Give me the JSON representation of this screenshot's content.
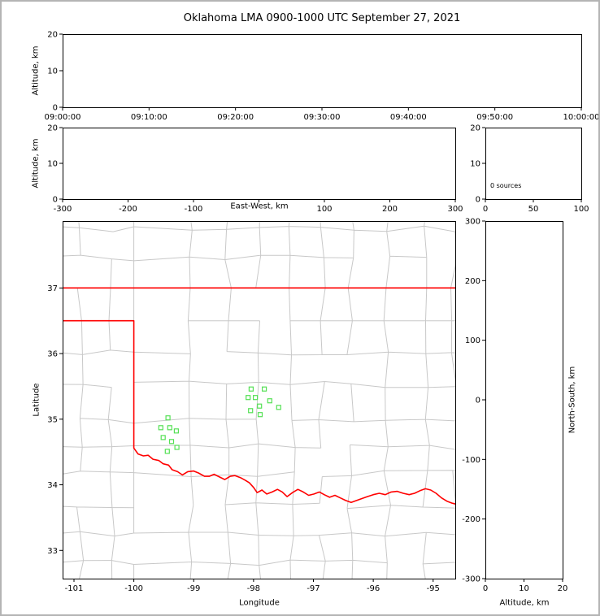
{
  "title": "Oklahoma LMA 0900-1000 UTC September 27, 2021",
  "colors": {
    "frame": "#b4b4b4",
    "axis": "#000000",
    "county_line": "#c8c8c8",
    "state_border": "#ff0000",
    "station_marker": "#55e055",
    "background": "#ffffff"
  },
  "chart_data": [
    {
      "id": "altitude-vs-time",
      "type": "scatter",
      "xlabel": "",
      "ylabel": "Altitude, km",
      "xlim": [
        0,
        3600
      ],
      "ylim": [
        0,
        20
      ],
      "xtick_vals": [
        0,
        600,
        1200,
        1800,
        2400,
        3000,
        3600
      ],
      "xtick_labels": [
        "09:00:00",
        "09:10:00",
        "09:20:00",
        "09:30:00",
        "09:40:00",
        "09:50:00",
        "10:00:00"
      ],
      "ytick_vals": [
        0,
        10,
        20
      ],
      "ytick_labels": [
        "0",
        "10",
        "20"
      ],
      "points": []
    },
    {
      "id": "altitude-vs-east-west",
      "type": "scatter",
      "xlabel": "East-West, km",
      "ylabel": "Altitude, km",
      "xlim": [
        -300,
        300
      ],
      "ylim": [
        0,
        20
      ],
      "xtick_vals": [
        -300,
        -200,
        -100,
        0,
        100,
        200,
        300
      ],
      "xtick_labels": [
        "-300",
        "-200",
        "-100",
        "",
        "100",
        "200",
        "300"
      ],
      "ytick_vals": [
        0,
        10,
        20
      ],
      "ytick_labels": [
        "0",
        "10",
        "20"
      ],
      "points": []
    },
    {
      "id": "altitude-source-histogram",
      "type": "line",
      "xlabel": "",
      "ylabel": "",
      "annotation": "0 sources",
      "xlim": [
        0,
        100
      ],
      "ylim": [
        0,
        20
      ],
      "xtick_vals": [
        0,
        50,
        100
      ],
      "xtick_labels": [
        "0",
        "50",
        "100"
      ],
      "ytick_vals": [
        0,
        10,
        20
      ],
      "ytick_labels": [
        "0",
        "10",
        "20"
      ],
      "points": []
    },
    {
      "id": "map-latitude-vs-longitude",
      "type": "scatter",
      "xlabel": "Longitude",
      "ylabel": "Latitude",
      "xlim": [
        -101.19,
        -94.63
      ],
      "ylim": [
        32.57,
        38.02
      ],
      "xtick_vals": [
        -101,
        -100,
        -99,
        -98,
        -97,
        -96,
        -95
      ],
      "xtick_labels": [
        "-101",
        "-100",
        "-99",
        "-98",
        "-97",
        "-96",
        "-95"
      ],
      "ytick_vals": [
        33,
        34,
        35,
        36,
        37
      ],
      "ytick_labels": [
        "33",
        "34",
        "35",
        "36",
        "37"
      ],
      "stations": [
        [
          -99.55,
          34.87
        ],
        [
          -99.43,
          35.02
        ],
        [
          -99.4,
          34.87
        ],
        [
          -99.29,
          34.82
        ],
        [
          -99.51,
          34.72
        ],
        [
          -99.37,
          34.66
        ],
        [
          -99.28,
          34.57
        ],
        [
          -99.44,
          34.51
        ],
        [
          -98.04,
          35.46
        ],
        [
          -97.82,
          35.46
        ],
        [
          -98.09,
          35.33
        ],
        [
          -97.97,
          35.33
        ],
        [
          -97.73,
          35.28
        ],
        [
          -97.9,
          35.2
        ],
        [
          -98.05,
          35.13
        ],
        [
          -97.89,
          35.07
        ],
        [
          -97.58,
          35.18
        ]
      ],
      "state_border": [
        [
          [
            -101.3,
            37.0
          ],
          [
            -94.5,
            37.0
          ]
        ],
        [
          [
            -101.3,
            36.5
          ],
          [
            -100.0,
            36.5
          ],
          [
            -100.0,
            34.56
          ],
          [
            -99.93,
            34.47
          ],
          [
            -99.84,
            34.44
          ],
          [
            -99.76,
            34.45
          ],
          [
            -99.68,
            34.39
          ],
          [
            -99.58,
            34.37
          ],
          [
            -99.51,
            34.32
          ],
          [
            -99.42,
            34.3
          ],
          [
            -99.36,
            34.23
          ],
          [
            -99.27,
            34.2
          ],
          [
            -99.19,
            34.15
          ],
          [
            -99.1,
            34.2
          ],
          [
            -99.0,
            34.21
          ],
          [
            -98.92,
            34.18
          ],
          [
            -98.82,
            34.13
          ],
          [
            -98.74,
            34.13
          ],
          [
            -98.66,
            34.16
          ],
          [
            -98.57,
            34.12
          ],
          [
            -98.48,
            34.08
          ],
          [
            -98.39,
            34.13
          ],
          [
            -98.31,
            34.14
          ],
          [
            -98.22,
            34.11
          ],
          [
            -98.14,
            34.07
          ],
          [
            -98.07,
            34.03
          ],
          [
            -98.0,
            33.96
          ],
          [
            -97.94,
            33.88
          ],
          [
            -97.86,
            33.92
          ],
          [
            -97.78,
            33.86
          ],
          [
            -97.69,
            33.89
          ],
          [
            -97.6,
            33.93
          ],
          [
            -97.52,
            33.89
          ],
          [
            -97.44,
            33.82
          ],
          [
            -97.35,
            33.88
          ],
          [
            -97.26,
            33.93
          ],
          [
            -97.17,
            33.89
          ],
          [
            -97.08,
            33.84
          ],
          [
            -96.99,
            33.86
          ],
          [
            -96.9,
            33.89
          ],
          [
            -96.82,
            33.85
          ],
          [
            -96.73,
            33.81
          ],
          [
            -96.64,
            33.84
          ],
          [
            -96.55,
            33.8
          ],
          [
            -96.46,
            33.76
          ],
          [
            -96.37,
            33.73
          ],
          [
            -96.28,
            33.76
          ],
          [
            -96.19,
            33.79
          ],
          [
            -96.1,
            33.82
          ],
          [
            -96.0,
            33.85
          ],
          [
            -95.9,
            33.87
          ],
          [
            -95.8,
            33.85
          ],
          [
            -95.7,
            33.89
          ],
          [
            -95.6,
            33.9
          ],
          [
            -95.5,
            33.87
          ],
          [
            -95.4,
            33.85
          ],
          [
            -95.31,
            33.87
          ],
          [
            -95.22,
            33.91
          ],
          [
            -95.13,
            33.94
          ],
          [
            -95.04,
            33.92
          ],
          [
            -94.95,
            33.87
          ],
          [
            -94.86,
            33.8
          ],
          [
            -94.77,
            33.75
          ],
          [
            -94.68,
            33.72
          ],
          [
            -94.55,
            33.69
          ]
        ]
      ]
    },
    {
      "id": "north-south-vs-altitude",
      "type": "scatter",
      "xlabel": "Altitude, km",
      "ylabel_right": "North-South, km",
      "xlim": [
        0,
        20
      ],
      "ylim": [
        -300,
        300
      ],
      "xtick_vals": [
        0,
        10,
        20
      ],
      "xtick_labels": [
        "0",
        "10",
        "20"
      ],
      "ytick_vals": [
        -300,
        -200,
        -100,
        0,
        100,
        200,
        300
      ],
      "ytick_labels": [
        "-300",
        "-200",
        "-100",
        "0",
        "100",
        "200",
        "300"
      ],
      "points": []
    }
  ]
}
